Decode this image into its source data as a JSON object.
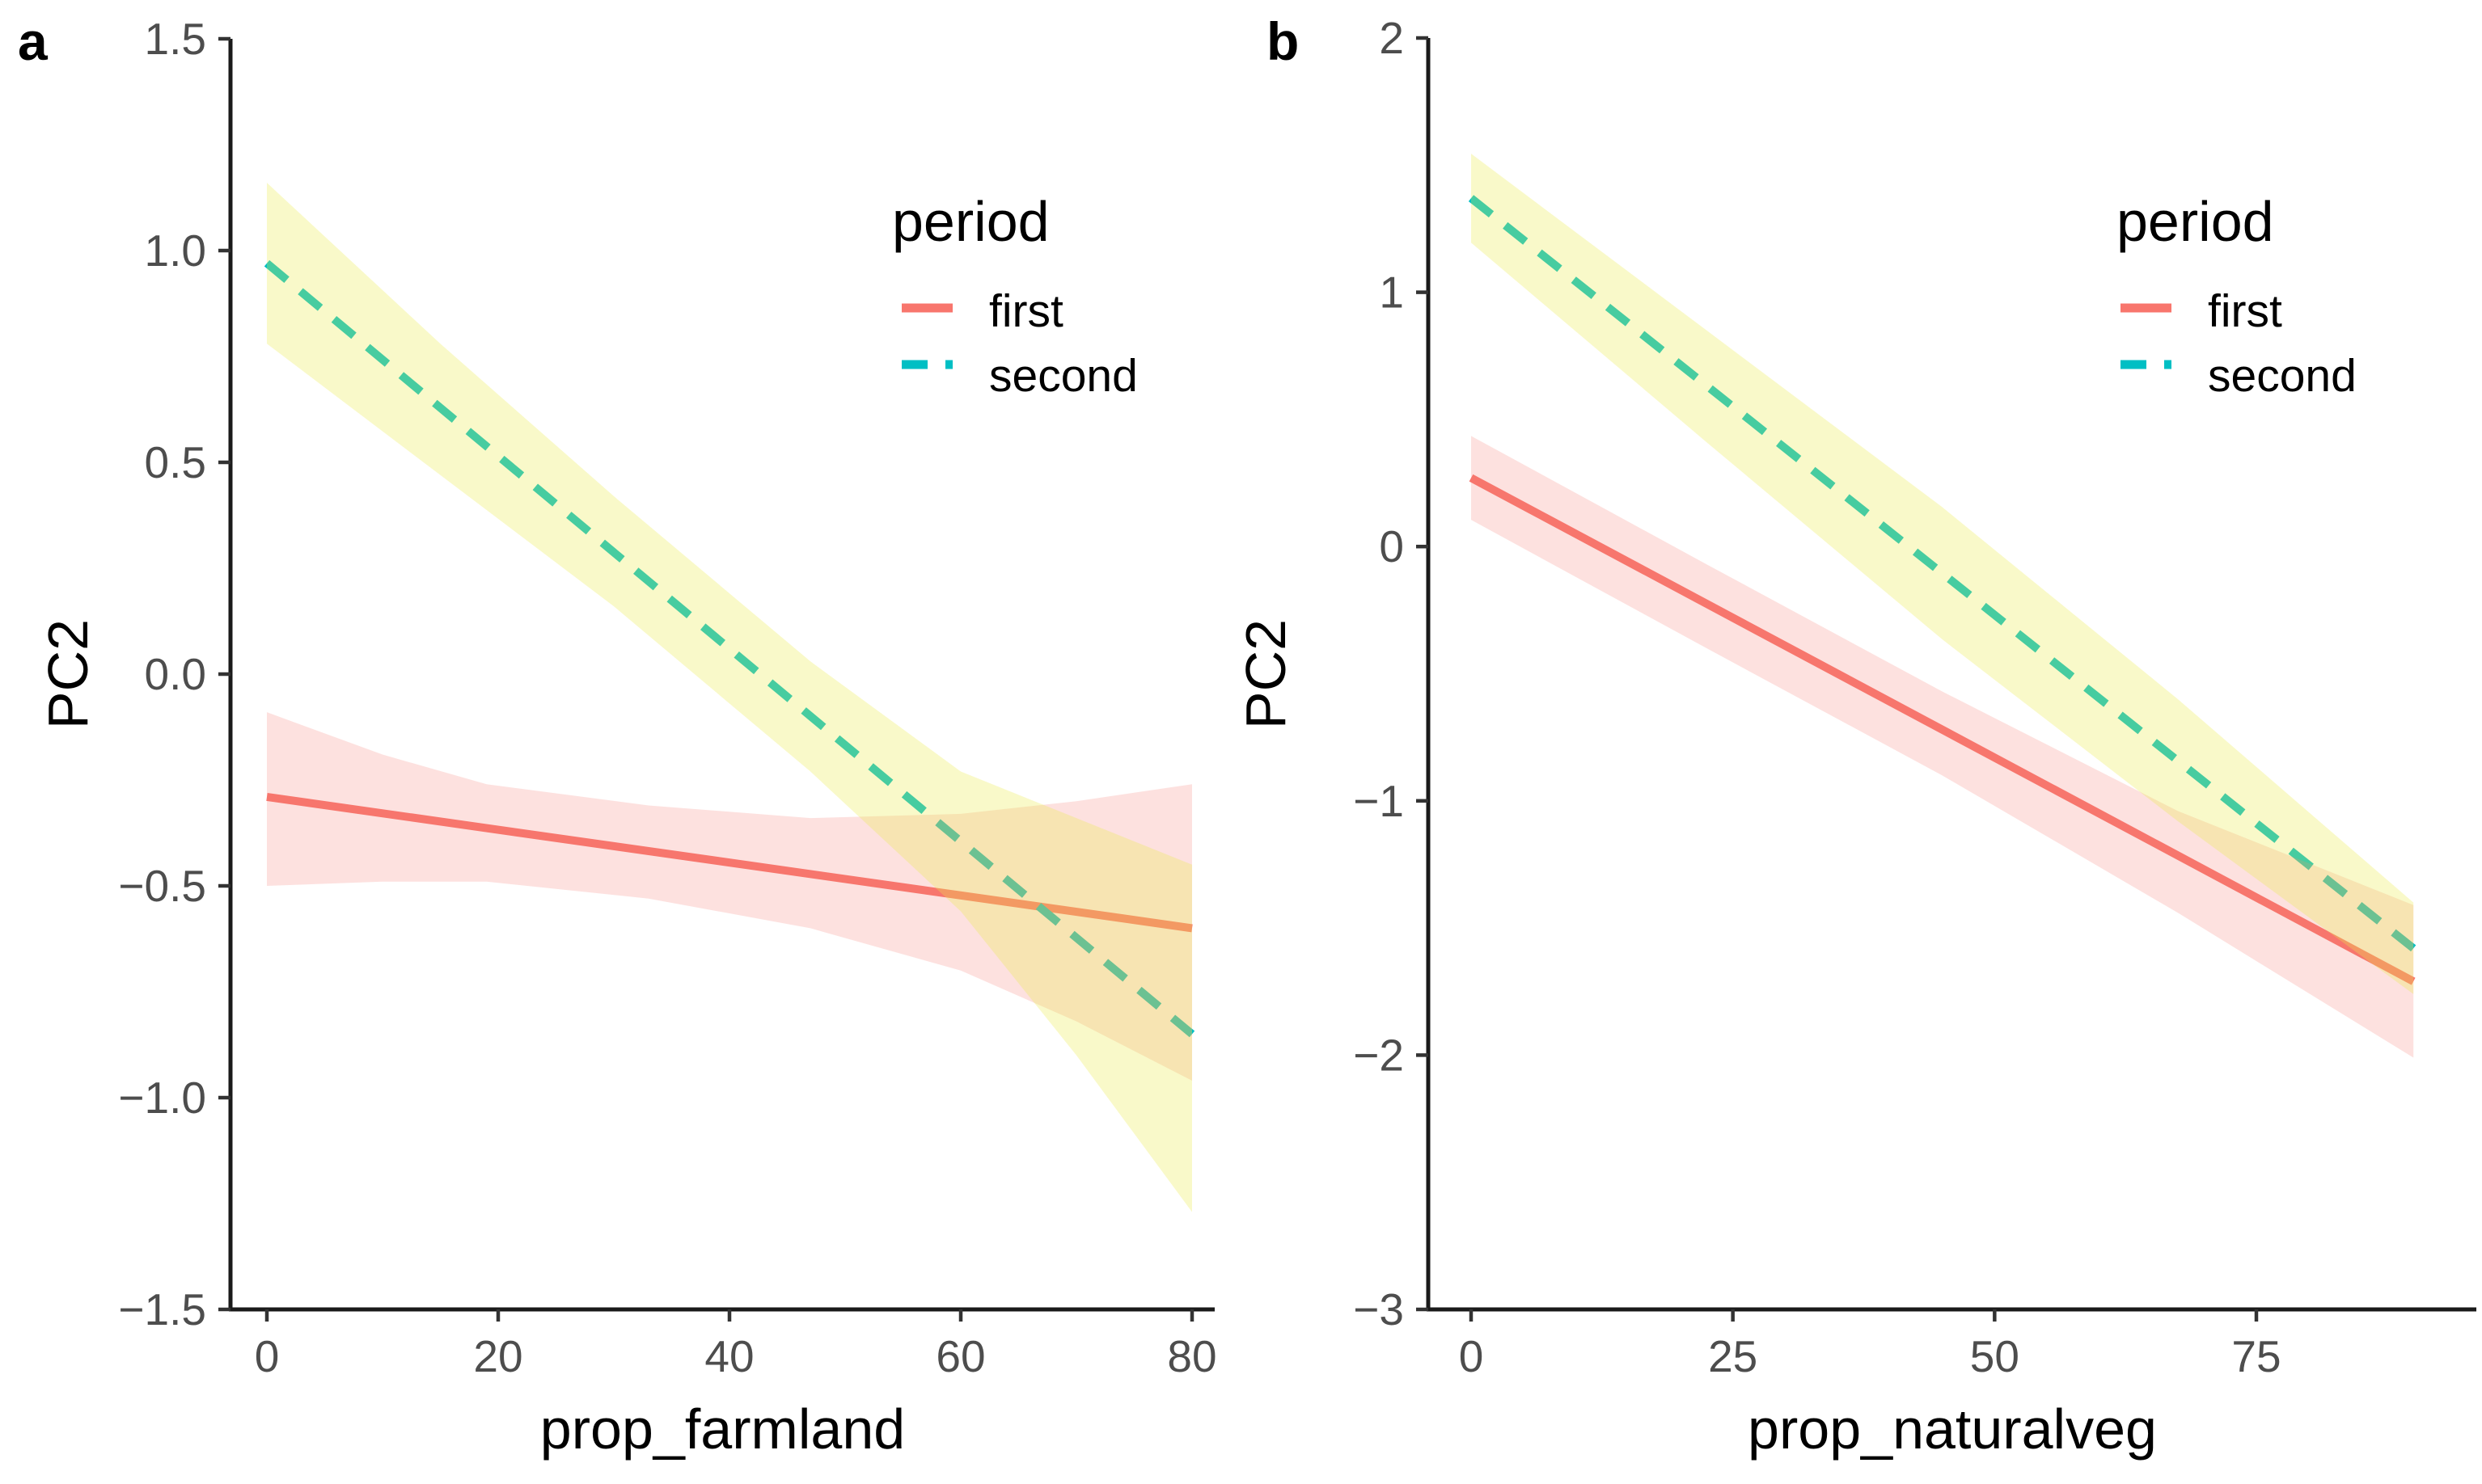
{
  "figure": {
    "background": "#ffffff",
    "colors": {
      "axis_line": "#1a1a1a",
      "tick_mark": "#333333",
      "tick_label": "#4d4d4d",
      "text": "#000000",
      "first_line": "#f8766d",
      "second_line": "#00bfc4",
      "first_band_fill": "rgba(248,118,109,0.22)",
      "second_band_fill": "rgba(236,236,77,0.30)"
    }
  },
  "chart_data": [
    {
      "type": "line",
      "panel_label": "a",
      "xlabel": "prop_farmland",
      "ylabel": "PC2",
      "xlim": [
        0,
        80
      ],
      "ylim": [
        -1.5,
        1.5
      ],
      "x_axis": {
        "ticks": [
          0,
          20,
          40,
          60,
          80
        ],
        "tick_labels": [
          "0",
          "20",
          "40",
          "60",
          "80"
        ]
      },
      "y_axis": {
        "ticks": [
          1.5,
          1.0,
          0.5,
          0.0,
          -0.5,
          -1.0,
          -1.5
        ],
        "tick_labels": [
          "1.5",
          "1.0",
          "0.5",
          "0.0",
          "−0.5",
          "−1.0",
          "−1.5"
        ]
      },
      "legend": {
        "title": "period",
        "position": "inside-top-right",
        "entries": [
          {
            "label": "first",
            "line": "solid",
            "color": "#f8766d"
          },
          {
            "label": "second",
            "line": "dashed",
            "color": "#00bfc4"
          }
        ]
      },
      "series": [
        {
          "name": "first",
          "line": "solid",
          "color": "#f8766d",
          "band_color": "rgba(248,118,109,0.22)",
          "x": [
            0,
            80
          ],
          "y": [
            -0.29,
            -0.6
          ],
          "band": {
            "x": [
              0,
              10,
              19,
              33,
              47,
              60,
              70,
              80
            ],
            "top": [
              -0.09,
              -0.19,
              -0.26,
              -0.31,
              -0.34,
              -0.33,
              -0.3,
              -0.26
            ],
            "bottom": [
              -0.5,
              -0.49,
              -0.49,
              -0.53,
              -0.6,
              -0.7,
              -0.82,
              -0.96
            ]
          }
        },
        {
          "name": "second",
          "line": "dashed",
          "color": "#00bfc4",
          "band_color": "rgba(236,236,77,0.30)",
          "x": [
            0,
            80
          ],
          "y": [
            0.97,
            -0.85
          ],
          "band": {
            "x": [
              0,
              15,
              30,
              47,
              60,
              70,
              80
            ],
            "top": [
              1.16,
              0.78,
              0.42,
              0.03,
              -0.23,
              -0.34,
              -0.45
            ],
            "bottom": [
              0.78,
              0.47,
              0.16,
              -0.23,
              -0.56,
              -0.9,
              -1.27
            ]
          }
        }
      ]
    },
    {
      "type": "line",
      "panel_label": "b",
      "xlabel": "prop_naturalveg",
      "ylabel": "PC2",
      "xlim": [
        0,
        90
      ],
      "ylim": [
        -3,
        2
      ],
      "x_axis": {
        "ticks": [
          0,
          25,
          50,
          75
        ],
        "tick_labels": [
          "0",
          "25",
          "50",
          "75"
        ]
      },
      "y_axis": {
        "ticks": [
          2,
          1,
          0,
          -1,
          -2,
          -3
        ],
        "tick_labels": [
          "2",
          "1",
          "0",
          "−1",
          "−2",
          "−3"
        ]
      },
      "legend": {
        "title": "period",
        "position": "inside-top-right",
        "entries": [
          {
            "label": "first",
            "line": "solid",
            "color": "#f8766d"
          },
          {
            "label": "second",
            "line": "dashed",
            "color": "#00bfc4"
          }
        ]
      },
      "series": [
        {
          "name": "first",
          "line": "solid",
          "color": "#f8766d",
          "band_color": "rgba(248,118,109,0.22)",
          "x": [
            0,
            90
          ],
          "y": [
            0.27,
            -1.71
          ],
          "band": {
            "x": [
              0,
              22.5,
              45,
              67.5,
              90
            ],
            "top": [
              0.435,
              -0.07,
              -0.57,
              -1.04,
              -1.41
            ],
            "bottom": [
              0.105,
              -0.4,
              -0.9,
              -1.44,
              -2.01
            ]
          }
        },
        {
          "name": "second",
          "line": "dashed",
          "color": "#00bfc4",
          "band_color": "rgba(236,236,77,0.30)",
          "x": [
            0,
            90
          ],
          "y": [
            1.37,
            -1.58
          ],
          "band": {
            "x": [
              0,
              22.5,
              45,
              67.5,
              90
            ],
            "top": [
              1.545,
              0.85,
              0.155,
              -0.6,
              -1.4
            ],
            "bottom": [
              1.195,
              0.41,
              -0.365,
              -1.08,
              -1.76
            ]
          }
        }
      ]
    }
  ]
}
